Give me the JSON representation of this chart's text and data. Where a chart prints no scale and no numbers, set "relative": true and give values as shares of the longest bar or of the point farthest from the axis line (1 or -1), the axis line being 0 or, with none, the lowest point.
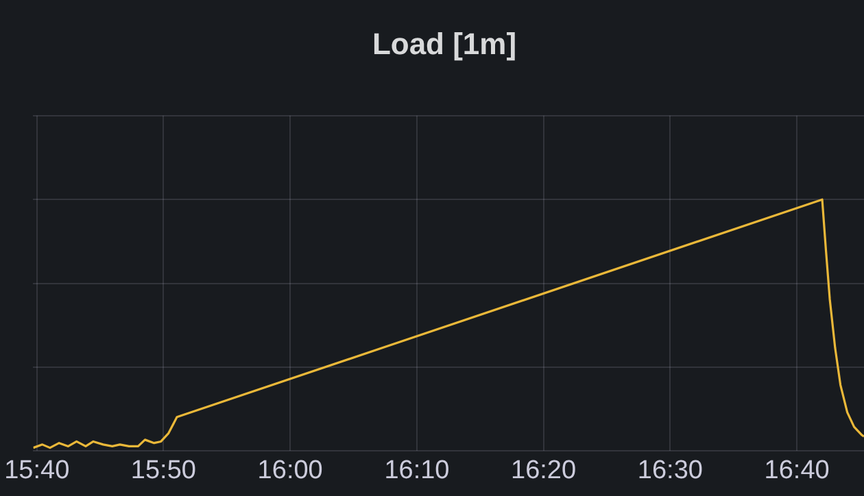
{
  "chart_data": {
    "type": "line",
    "title": "Load [1m]",
    "relative": true,
    "grid": true,
    "marker": "none",
    "line_style": "solid",
    "x": [
      15.662,
      15.674,
      15.684,
      15.696,
      15.708,
      15.719,
      15.731,
      15.741,
      15.754,
      15.766,
      15.776,
      15.788,
      15.8,
      15.809,
      15.821,
      15.83,
      15.84,
      15.851,
      16.7,
      16.705,
      16.71,
      16.717,
      16.724,
      16.733,
      16.742,
      16.752,
      16.755
    ],
    "series": [
      {
        "color": "#eab839",
        "values": [
          0.013,
          0.026,
          0.013,
          0.032,
          0.019,
          0.038,
          0.019,
          0.038,
          0.026,
          0.019,
          0.026,
          0.019,
          0.019,
          0.045,
          0.032,
          0.038,
          0.071,
          0.135,
          1,
          0.795,
          0.603,
          0.41,
          0.263,
          0.154,
          0.096,
          0.064,
          0.058
        ]
      }
    ],
    "xlim": [
      15.662,
      16.755
    ],
    "xticks": [
      {
        "value": 15.6667,
        "label": "15:40"
      },
      {
        "value": 15.8333,
        "label": "15:50"
      },
      {
        "value": 16,
        "label": "16:00"
      },
      {
        "value": 16.1667,
        "label": "16:10"
      },
      {
        "value": 16.3333,
        "label": "16:20"
      },
      {
        "value": 16.5,
        "label": "16:30"
      },
      {
        "value": 16.6667,
        "label": "16:40"
      }
    ]
  }
}
